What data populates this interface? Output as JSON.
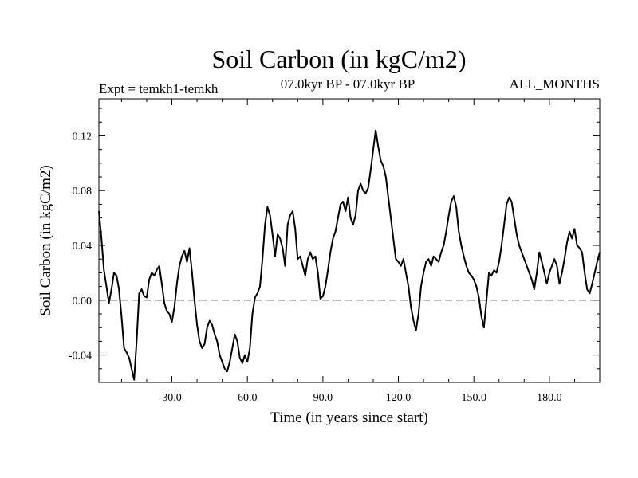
{
  "chart_data": {
    "type": "line",
    "title": "Soil Carbon (in kgC/m2)",
    "subtitle_left": "Expt = temkh1-temkh",
    "subtitle_center": "07.0kyr BP - 07.0kyr BP",
    "subtitle_right": "ALL_MONTHS",
    "xlabel": "Time (in years since start)",
    "ylabel": "Soil Carbon (in kgC/m2)",
    "xlim": [
      1,
      200
    ],
    "ylim": [
      -0.06,
      0.147
    ],
    "xticks": [
      30,
      60,
      90,
      120,
      150,
      180
    ],
    "xtick_labels": [
      "30.0",
      "60.0",
      "90.0",
      "120.0",
      "150.0",
      "180.0"
    ],
    "yticks": [
      -0.04,
      0.0,
      0.04,
      0.08,
      0.12
    ],
    "ytick_labels": [
      "-0.04",
      "0.00",
      "0.04",
      "0.08",
      "0.12"
    ],
    "reference_line": {
      "y": 0.0,
      "style": "dashed"
    },
    "grid": false,
    "line_color": "#000000",
    "series": [
      {
        "x": [
          1,
          2,
          3,
          4,
          5,
          6,
          7,
          8,
          9,
          10,
          11,
          12,
          13,
          14,
          15,
          16,
          17,
          18,
          19,
          20,
          21,
          22,
          23,
          24,
          25,
          26,
          27,
          28,
          29,
          30,
          31,
          32,
          33,
          34,
          35,
          36,
          37,
          38,
          39,
          40,
          41,
          42,
          43,
          44,
          45,
          46,
          47,
          48,
          49,
          50,
          51,
          52,
          53,
          54,
          55,
          56,
          57,
          58,
          59,
          60,
          61,
          62,
          63,
          64,
          65,
          66,
          67,
          68,
          69,
          70,
          71,
          72,
          73,
          74,
          75,
          76,
          77,
          78,
          79,
          80,
          81,
          82,
          83,
          84,
          85,
          86,
          87,
          88,
          89,
          90,
          91,
          92,
          93,
          94,
          95,
          96,
          97,
          98,
          99,
          100,
          101,
          102,
          103,
          104,
          105,
          106,
          107,
          108,
          109,
          110,
          111,
          112,
          113,
          114,
          115,
          116,
          117,
          118,
          119,
          120,
          121,
          122,
          123,
          124,
          125,
          126,
          127,
          128,
          129,
          130,
          131,
          132,
          133,
          134,
          135,
          136,
          137,
          138,
          139,
          140,
          141,
          142,
          143,
          144,
          145,
          146,
          147,
          148,
          149,
          150,
          151,
          152,
          153,
          154,
          155,
          156,
          157,
          158,
          159,
          160,
          161,
          162,
          163,
          164,
          165,
          166,
          167,
          168,
          169,
          170,
          171,
          172,
          173,
          174,
          175,
          176,
          177,
          178,
          179,
          180,
          181,
          182,
          183,
          184,
          185,
          186,
          187,
          188,
          189,
          190,
          191,
          192,
          193,
          194,
          195,
          196,
          197,
          198,
          199,
          200
        ],
        "values": [
          0.065,
          0.045,
          0.022,
          0.01,
          -0.002,
          0.008,
          0.02,
          0.018,
          0.008,
          -0.012,
          -0.035,
          -0.038,
          -0.042,
          -0.05,
          -0.058,
          -0.03,
          0.005,
          0.008,
          0.003,
          0.002,
          0.015,
          0.02,
          0.018,
          0.022,
          0.025,
          0.012,
          -0.002,
          -0.008,
          -0.01,
          -0.016,
          -0.005,
          0.012,
          0.025,
          0.032,
          0.036,
          0.028,
          0.038,
          0.02,
          0.0,
          -0.018,
          -0.03,
          -0.035,
          -0.032,
          -0.02,
          -0.015,
          -0.018,
          -0.025,
          -0.03,
          -0.04,
          -0.045,
          -0.05,
          -0.052,
          -0.045,
          -0.035,
          -0.025,
          -0.03,
          -0.042,
          -0.046,
          -0.04,
          -0.045,
          -0.035,
          -0.01,
          0.002,
          0.005,
          0.01,
          0.03,
          0.055,
          0.068,
          0.062,
          0.048,
          0.032,
          0.048,
          0.045,
          0.038,
          0.025,
          0.055,
          0.062,
          0.065,
          0.052,
          0.03,
          0.032,
          0.025,
          0.018,
          0.03,
          0.035,
          0.03,
          0.032,
          0.02,
          0.001,
          0.003,
          0.01,
          0.022,
          0.035,
          0.045,
          0.05,
          0.06,
          0.07,
          0.072,
          0.065,
          0.075,
          0.06,
          0.055,
          0.062,
          0.08,
          0.085,
          0.08,
          0.078,
          0.082,
          0.095,
          0.11,
          0.124,
          0.112,
          0.102,
          0.098,
          0.09,
          0.075,
          0.06,
          0.045,
          0.03,
          0.028,
          0.025,
          0.03,
          0.02,
          0.01,
          -0.005,
          -0.015,
          -0.022,
          -0.01,
          0.01,
          0.02,
          0.028,
          0.03,
          0.025,
          0.032,
          0.03,
          0.028,
          0.035,
          0.04,
          0.05,
          0.062,
          0.072,
          0.076,
          0.068,
          0.05,
          0.04,
          0.032,
          0.025,
          0.02,
          0.018,
          0.015,
          0.01,
          0.002,
          -0.012,
          -0.02,
          0.0,
          0.02,
          0.018,
          0.022,
          0.02,
          0.028,
          0.04,
          0.055,
          0.07,
          0.075,
          0.072,
          0.06,
          0.048,
          0.04,
          0.035,
          0.03,
          0.025,
          0.02,
          0.015,
          0.008,
          0.02,
          0.035,
          0.028,
          0.02,
          0.012,
          0.02,
          0.025,
          0.03,
          0.025,
          0.012,
          0.02,
          0.03,
          0.042,
          0.05,
          0.045,
          0.052,
          0.04,
          0.038,
          0.035,
          0.02,
          0.008,
          0.005,
          0.012,
          0.02,
          0.028,
          0.035
        ]
      }
    ]
  }
}
